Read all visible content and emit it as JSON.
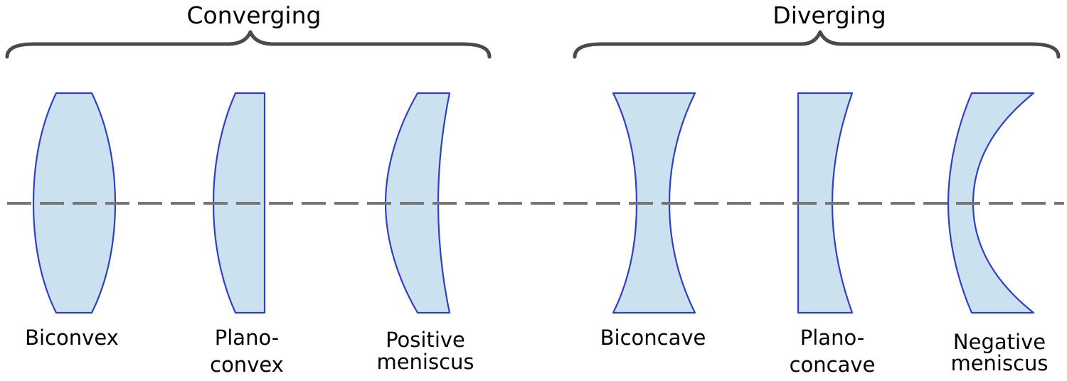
{
  "groups": {
    "converging": {
      "title": "Converging"
    },
    "diverging": {
      "title": "Diverging"
    }
  },
  "lenses": {
    "biconvex": {
      "line1": "Biconvex",
      "line2": ""
    },
    "plano_convex": {
      "line1": "Plano-",
      "line2": "convex"
    },
    "positive_meniscus": {
      "line1": "Positive",
      "line2": "meniscus"
    },
    "biconcave": {
      "line1": "Biconcave",
      "line2": ""
    },
    "plano_concave": {
      "line1": "Plano-",
      "line2": "concave"
    },
    "negative_meniscus": {
      "line1": "Negative",
      "line2": "meniscus"
    }
  },
  "colors": {
    "lens_fill": "#cce1f0",
    "lens_stroke": "#3040c0",
    "axis": "#777777",
    "brace": "#4a4a4a"
  }
}
